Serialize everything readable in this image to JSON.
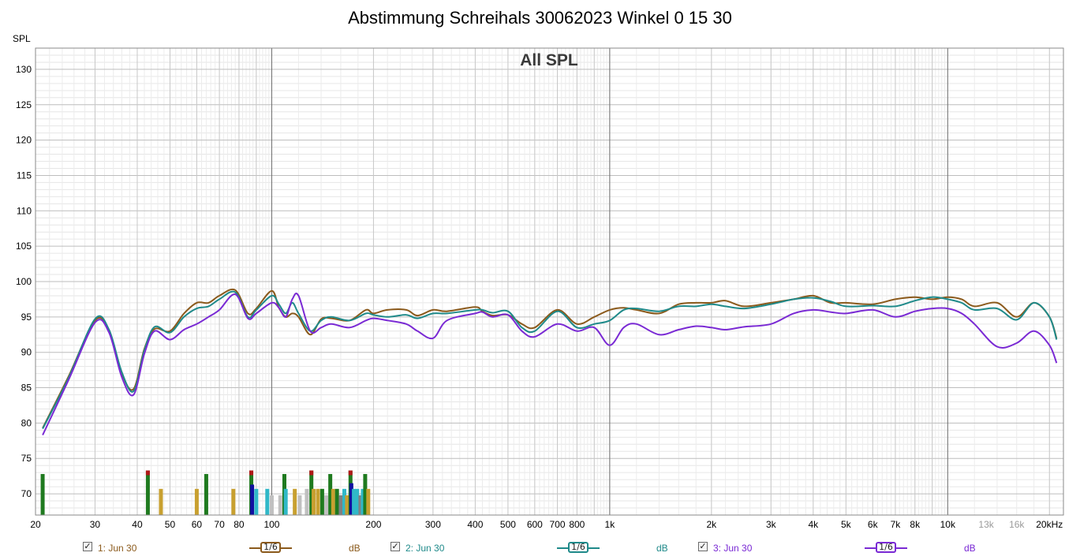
{
  "chart_data": {
    "type": "line",
    "title": "Abstimmung Schreihals 30062023 Winkel 0 15 30",
    "subtitle": "All SPL",
    "ylabel": "SPL",
    "xscale": "log",
    "xlim": [
      20,
      22000
    ],
    "ylim": [
      67,
      133
    ],
    "grid": true,
    "y_ticks": [
      "130",
      "125",
      "120",
      "115",
      "110",
      "105",
      "100",
      "95",
      "90",
      "85",
      "80",
      "75",
      "70"
    ],
    "x_ticks": [
      {
        "v": 20,
        "label": "20"
      },
      {
        "v": 30,
        "label": "30"
      },
      {
        "v": 40,
        "label": "40"
      },
      {
        "v": 50,
        "label": "50"
      },
      {
        "v": 60,
        "label": "60"
      },
      {
        "v": 70,
        "label": "70"
      },
      {
        "v": 80,
        "label": "80"
      },
      {
        "v": 100,
        "label": "100"
      },
      {
        "v": 200,
        "label": "200"
      },
      {
        "v": 300,
        "label": "300"
      },
      {
        "v": 400,
        "label": "400"
      },
      {
        "v": 500,
        "label": "500"
      },
      {
        "v": 600,
        "label": "600"
      },
      {
        "v": 700,
        "label": "700"
      },
      {
        "v": 800,
        "label": "800"
      },
      {
        "v": 1000,
        "label": "1k"
      },
      {
        "v": 2000,
        "label": "2k"
      },
      {
        "v": 3000,
        "label": "3k"
      },
      {
        "v": 4000,
        "label": "4k"
      },
      {
        "v": 5000,
        "label": "5k"
      },
      {
        "v": 6000,
        "label": "6k"
      },
      {
        "v": 7000,
        "label": "7k"
      },
      {
        "v": 8000,
        "label": "8k"
      },
      {
        "v": 10000,
        "label": "10k"
      },
      {
        "v": 13000,
        "label": "13k",
        "muted": true
      },
      {
        "v": 16000,
        "label": "16k",
        "muted": true
      },
      {
        "v": 20000,
        "label": "20kHz"
      }
    ],
    "x": [
      21,
      25,
      30,
      33,
      36,
      39,
      42,
      45,
      50,
      55,
      60,
      65,
      70,
      78,
      85,
      90,
      100,
      105,
      110,
      115,
      120,
      130,
      140,
      150,
      170,
      190,
      200,
      220,
      250,
      270,
      300,
      330,
      400,
      420,
      450,
      500,
      550,
      600,
      700,
      800,
      900,
      1000,
      1100,
      1200,
      1400,
      1600,
      1800,
      2000,
      2200,
      2500,
      3000,
      3500,
      4000,
      4500,
      5000,
      6000,
      7000,
      8000,
      9000,
      10000,
      11000,
      12000,
      14000,
      16000,
      18000,
      20000,
      21000
    ],
    "series": [
      {
        "name": "1: Jun 30",
        "color": "#8b5a1c",
        "values": [
          79.3,
          86.5,
          94.5,
          93.0,
          87.0,
          84.8,
          90.5,
          93.3,
          93.0,
          95.5,
          97.0,
          97.0,
          98.0,
          98.8,
          95.5,
          96.2,
          98.7,
          96.3,
          95.0,
          95.5,
          95.0,
          92.5,
          94.7,
          94.8,
          94.5,
          96.0,
          95.5,
          96.0,
          96.0,
          95.2,
          96.0,
          95.8,
          96.4,
          95.8,
          95.2,
          95.3,
          94.0,
          93.5,
          96.0,
          94.0,
          95.0,
          96.0,
          96.3,
          96.0,
          95.5,
          96.8,
          97.0,
          97.0,
          97.3,
          96.5,
          97.0,
          97.5,
          98.0,
          97.0,
          97.0,
          96.8,
          97.5,
          97.8,
          97.5,
          97.8,
          97.5,
          96.5,
          97.0,
          95.0,
          97.0,
          95.0,
          92.0
        ]
      },
      {
        "name": "2: Jun 30",
        "color": "#1f8a8a",
        "values": [
          79.2,
          86.3,
          94.7,
          93.2,
          87.2,
          84.5,
          90.3,
          93.6,
          92.8,
          95.0,
          96.2,
          96.5,
          97.5,
          98.5,
          95.0,
          96.0,
          98.0,
          96.8,
          95.5,
          97.0,
          95.5,
          93.0,
          94.5,
          95.0,
          94.5,
          95.5,
          95.3,
          95.0,
          95.3,
          94.8,
          95.5,
          95.5,
          96.0,
          96.0,
          95.6,
          95.8,
          93.5,
          93.0,
          95.8,
          93.5,
          94.0,
          94.5,
          96.0,
          96.2,
          95.8,
          96.5,
          96.5,
          96.8,
          96.5,
          96.2,
          96.8,
          97.5,
          97.7,
          97.2,
          96.5,
          96.6,
          96.5,
          97.3,
          97.8,
          97.5,
          97.0,
          96.0,
          96.2,
          94.6,
          97.0,
          95.0,
          91.8
        ]
      },
      {
        "name": "3: Jun 30",
        "color": "#7a2ad4",
        "values": [
          78.3,
          86.0,
          94.2,
          92.8,
          86.5,
          84.0,
          89.8,
          93.0,
          91.8,
          93.2,
          94.0,
          95.0,
          96.0,
          98.2,
          94.8,
          95.5,
          97.0,
          96.3,
          95.0,
          97.5,
          98.0,
          93.0,
          93.5,
          94.0,
          93.5,
          94.5,
          94.8,
          94.5,
          94.0,
          93.0,
          92.0,
          94.5,
          95.5,
          95.7,
          95.0,
          95.3,
          93.0,
          92.2,
          94.0,
          93.0,
          93.5,
          91.0,
          93.5,
          94.0,
          92.5,
          93.2,
          93.7,
          93.5,
          93.2,
          93.6,
          94.0,
          95.5,
          96.0,
          95.7,
          95.5,
          96.0,
          95.0,
          95.8,
          96.2,
          96.2,
          95.5,
          94.0,
          90.8,
          91.3,
          93.0,
          91.0,
          88.5
        ]
      }
    ],
    "bars": {
      "baseline": 67,
      "items": [
        {
          "x": 21,
          "v": 72.8,
          "color": "#1f7a1f"
        },
        {
          "x": 43,
          "v": 73.3,
          "color": "#1f7a1f",
          "cap": "#b01818"
        },
        {
          "x": 47,
          "v": 70.7,
          "color": "#c8a030"
        },
        {
          "x": 60,
          "v": 70.7,
          "color": "#c8a030"
        },
        {
          "x": 64,
          "v": 72.8,
          "color": "#1f7a1f"
        },
        {
          "x": 77,
          "v": 70.7,
          "color": "#c8a030"
        },
        {
          "x": 87,
          "v": 73.3,
          "color": "#1f7a1f",
          "cap": "#b01818"
        },
        {
          "x": 87.5,
          "v": 71.3,
          "color": "#1010a0"
        },
        {
          "x": 90,
          "v": 70.7,
          "color": "#30b8c8"
        },
        {
          "x": 97,
          "v": 70.7,
          "color": "#30b8c8"
        },
        {
          "x": 100,
          "v": 69.8,
          "color": "#c0c0c0"
        },
        {
          "x": 106,
          "v": 69.8,
          "color": "#c0c0c0"
        },
        {
          "x": 109,
          "v": 72.8,
          "color": "#1f7a1f"
        },
        {
          "x": 110,
          "v": 70.7,
          "color": "#30b8c8"
        },
        {
          "x": 117,
          "v": 70.7,
          "color": "#c8a030"
        },
        {
          "x": 121,
          "v": 69.8,
          "color": "#c0c0c0"
        },
        {
          "x": 127,
          "v": 70.7,
          "color": "#c0c0c0"
        },
        {
          "x": 131,
          "v": 73.3,
          "color": "#1f7a1f",
          "cap": "#b01818"
        },
        {
          "x": 133,
          "v": 70.7,
          "color": "#c8a030"
        },
        {
          "x": 137,
          "v": 70.7,
          "color": "#c8a030"
        },
        {
          "x": 141,
          "v": 70.7,
          "color": "#1f7a1f"
        },
        {
          "x": 145,
          "v": 69.8,
          "color": "#c0c0c0"
        },
        {
          "x": 149,
          "v": 72.8,
          "color": "#1f7a1f"
        },
        {
          "x": 152,
          "v": 70.7,
          "color": "#c8a030"
        },
        {
          "x": 156,
          "v": 70.7,
          "color": "#1f7a1f"
        },
        {
          "x": 160,
          "v": 69.8,
          "color": "#808080"
        },
        {
          "x": 164,
          "v": 70.7,
          "color": "#30b8c8"
        },
        {
          "x": 167,
          "v": 69.8,
          "color": "#c8a030"
        },
        {
          "x": 171,
          "v": 73.3,
          "color": "#1f7a1f",
          "cap": "#b01818"
        },
        {
          "x": 172,
          "v": 71.5,
          "color": "#1010a0"
        },
        {
          "x": 175,
          "v": 70.7,
          "color": "#30b8c8"
        },
        {
          "x": 179,
          "v": 70.7,
          "color": "#30b8c8"
        },
        {
          "x": 183,
          "v": 69.8,
          "color": "#808080"
        },
        {
          "x": 186,
          "v": 70.7,
          "color": "#30b8c8"
        },
        {
          "x": 189,
          "v": 72.8,
          "color": "#1f7a1f"
        },
        {
          "x": 193,
          "v": 70.7,
          "color": "#c8a030"
        }
      ]
    }
  },
  "legend": [
    {
      "label": "1: Jun 30",
      "checked": "✓",
      "smoothing": "1/6",
      "unit": "dB",
      "color": "#8b5a1c"
    },
    {
      "label": "2: Jun 30",
      "checked": "✓",
      "smoothing": "1/6",
      "unit": "dB",
      "color": "#1f8a8a"
    },
    {
      "label": "3: Jun 30",
      "checked": "✓",
      "smoothing": "1/6",
      "unit": "dB",
      "color": "#7a2ad4"
    }
  ]
}
